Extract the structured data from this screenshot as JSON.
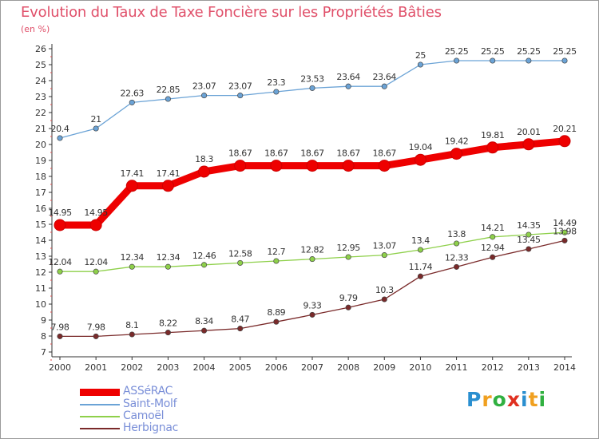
{
  "title": "Evolution du Taux de Taxe Foncière sur les Propriétés Bâties",
  "unit_label": "(en %)",
  "brand": {
    "text": "Proxiti",
    "letters": [
      {
        "ch": "P",
        "color": "#2a8fd0"
      },
      {
        "ch": "r",
        "color": "#f0a020"
      },
      {
        "ch": "o",
        "color": "#30b040"
      },
      {
        "ch": "x",
        "color": "#e03020"
      },
      {
        "ch": "i",
        "color": "#2a8fd0"
      },
      {
        "ch": "t",
        "color": "#f0a020"
      },
      {
        "ch": "i",
        "color": "#30b040"
      }
    ]
  },
  "chart_data": {
    "type": "line",
    "title": "Evolution du Taux de Taxe Foncière sur les Propriétés Bâties",
    "ylabel": "(en %)",
    "xlabel": "",
    "x": [
      "2000",
      "2001",
      "2002",
      "2003",
      "2004",
      "2005",
      "2006",
      "2007",
      "2008",
      "2009",
      "2010",
      "2011",
      "2012",
      "2013",
      "2014"
    ],
    "ylim": [
      7,
      26
    ],
    "yticks": [
      "7",
      "8",
      "9",
      "10",
      "11",
      "12",
      "13",
      "14",
      "15",
      "16",
      "17",
      "18",
      "19",
      "20",
      "21",
      "22",
      "23",
      "24",
      "25",
      "26"
    ],
    "grid": false,
    "legend_position": "bottom-left",
    "series": [
      {
        "name": "ASSéRAC",
        "color": "#ee0000",
        "style": "thick",
        "values": [
          14.95,
          14.95,
          17.41,
          17.41,
          18.3,
          18.67,
          18.67,
          18.67,
          18.67,
          18.67,
          19.04,
          19.42,
          19.81,
          20.01,
          20.21
        ],
        "labels": [
          "14.95",
          "14.95",
          "17.41",
          "17.41",
          "18.3",
          "18.67",
          "18.67",
          "18.67",
          "18.67",
          "18.67",
          "19.04",
          "19.42",
          "19.81",
          "20.01",
          "20.21"
        ]
      },
      {
        "name": "Saint-Molf",
        "color": "#6ba3d6",
        "style": "thin",
        "values": [
          20.4,
          21,
          22.63,
          22.85,
          23.07,
          23.07,
          23.3,
          23.53,
          23.64,
          23.64,
          25,
          25.25,
          25.25,
          25.25,
          25.25
        ],
        "labels": [
          "20.4",
          "21",
          "22.63",
          "22.85",
          "23.07",
          "23.07",
          "23.3",
          "23.53",
          "23.64",
          "23.64",
          "25",
          "25.25",
          "25.25",
          "25.25",
          "25.25"
        ]
      },
      {
        "name": "Camoël",
        "color": "#8ed04a",
        "style": "thin",
        "values": [
          12.04,
          12.04,
          12.34,
          12.34,
          12.46,
          12.58,
          12.7,
          12.82,
          12.95,
          13.07,
          13.4,
          13.8,
          14.21,
          14.35,
          14.49
        ],
        "labels": [
          "12.04",
          "12.04",
          "12.34",
          "12.34",
          "12.46",
          "12.58",
          "12.7",
          "12.82",
          "12.95",
          "13.07",
          "13.4",
          "13.8",
          "14.21",
          "14.35",
          "14.49"
        ]
      },
      {
        "name": "Herbignac",
        "color": "#7a2a2a",
        "style": "thin",
        "values": [
          7.98,
          7.98,
          8.1,
          8.22,
          8.34,
          8.47,
          8.89,
          9.33,
          9.79,
          10.3,
          11.74,
          12.33,
          12.94,
          13.45,
          13.98
        ],
        "labels": [
          "7.98",
          "7.98",
          "8.1",
          "8.22",
          "8.34",
          "8.47",
          "8.89",
          "9.33",
          "9.79",
          "10.3",
          "11.74",
          "12.33",
          "12.94",
          "13.45",
          "13.98"
        ]
      }
    ]
  }
}
